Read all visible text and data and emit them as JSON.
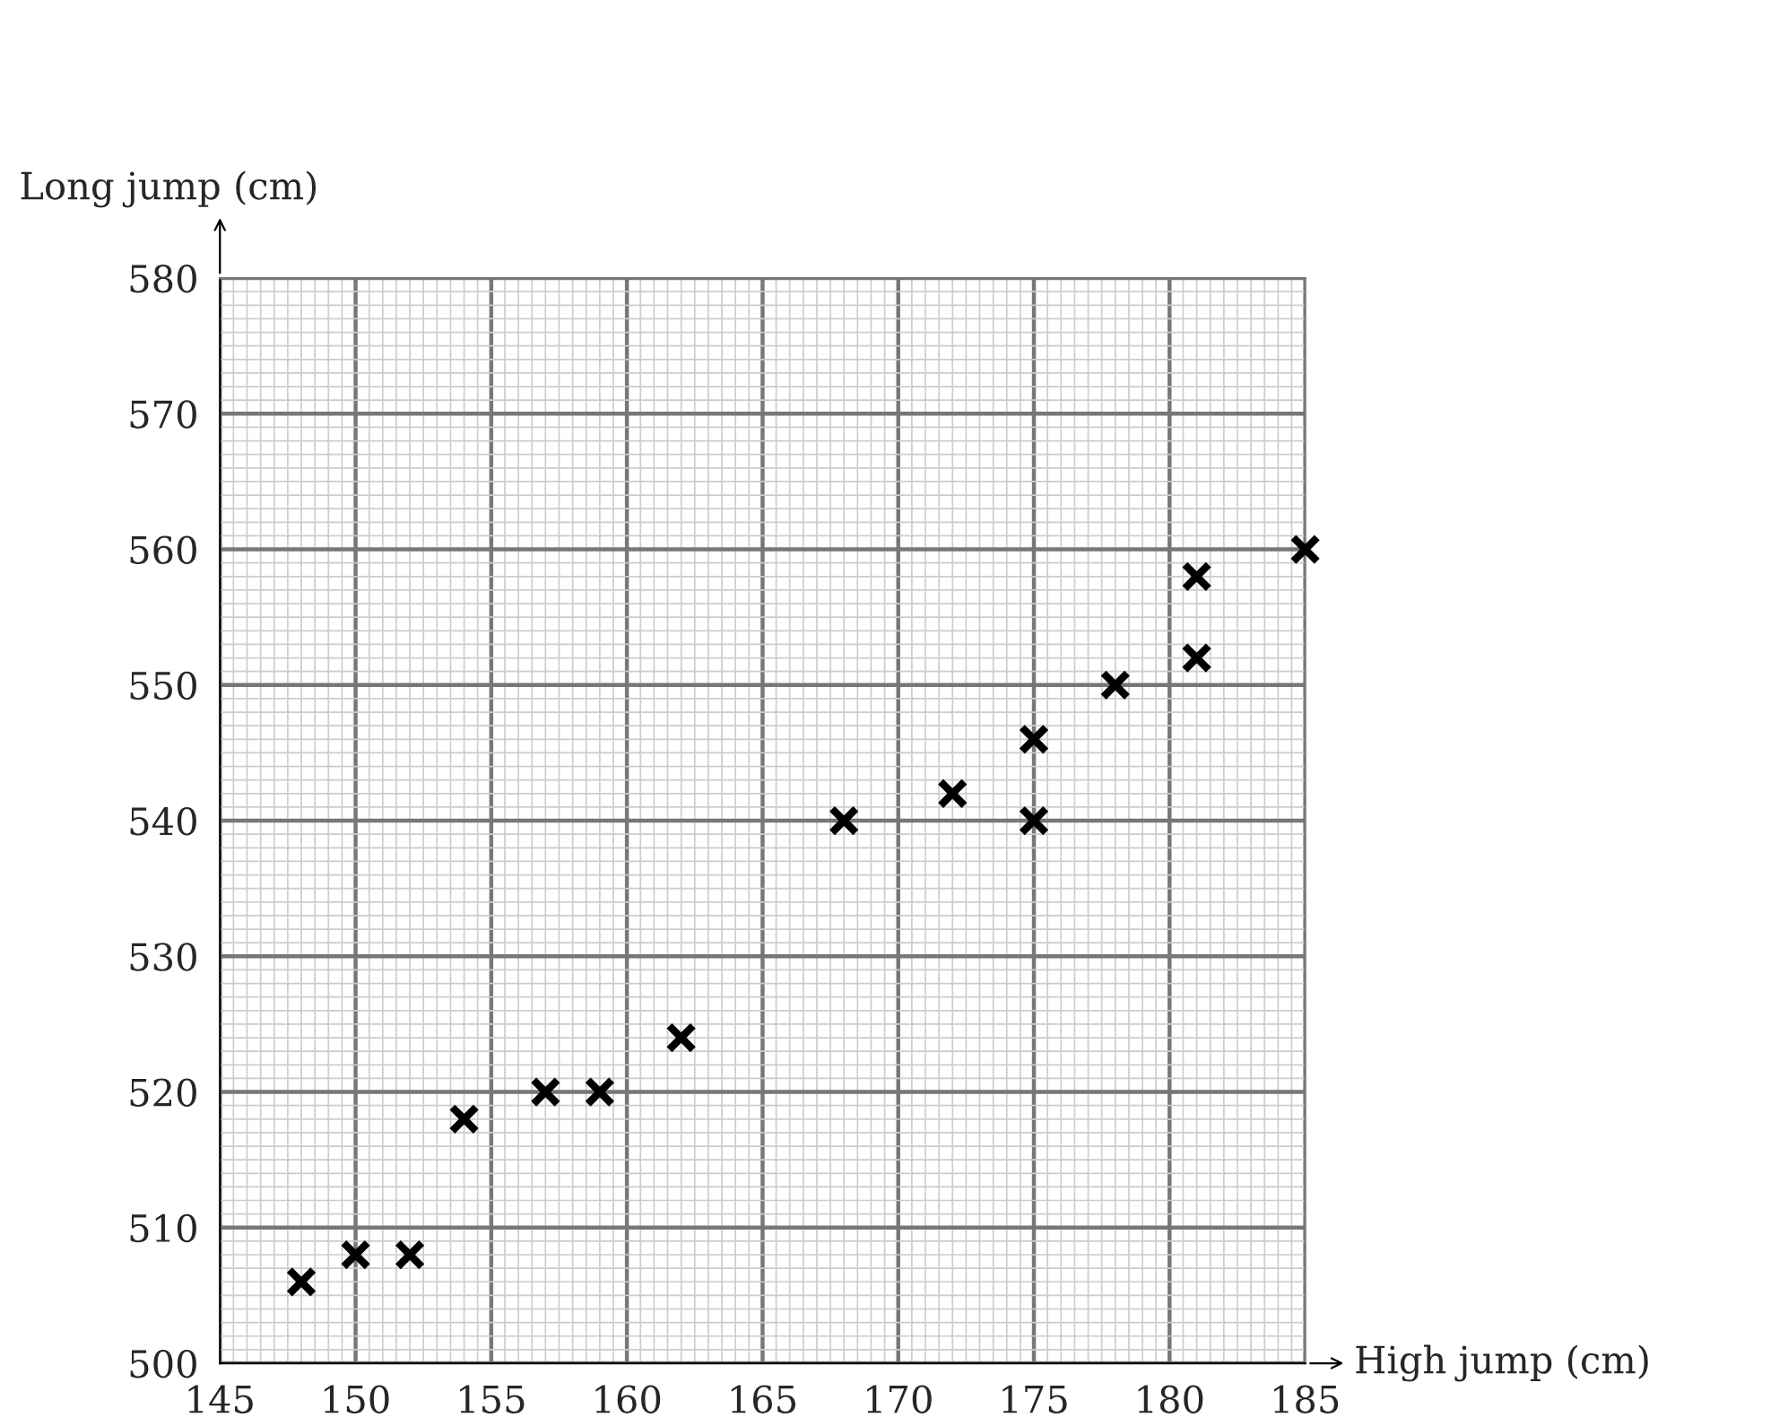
{
  "chart_data": {
    "type": "scatter",
    "xlabel": "High jump (cm)",
    "ylabel": "Long jump (cm)",
    "x": [
      148,
      150,
      152,
      154,
      157,
      159,
      162,
      168,
      172,
      175,
      175,
      178,
      181,
      181,
      185
    ],
    "values": [
      506,
      508,
      508,
      518,
      520,
      520,
      524,
      540,
      542,
      546,
      540,
      550,
      558,
      552,
      560
    ],
    "color": "#000000",
    "marker": "cross",
    "grid": true,
    "xlim": [
      145,
      185
    ],
    "xticks": [
      145,
      150,
      155,
      160,
      165,
      170,
      175,
      180,
      185
    ],
    "ylim": [
      500,
      580
    ],
    "yticks": [
      500,
      510,
      520,
      530,
      540,
      550,
      560,
      570,
      580
    ]
  }
}
